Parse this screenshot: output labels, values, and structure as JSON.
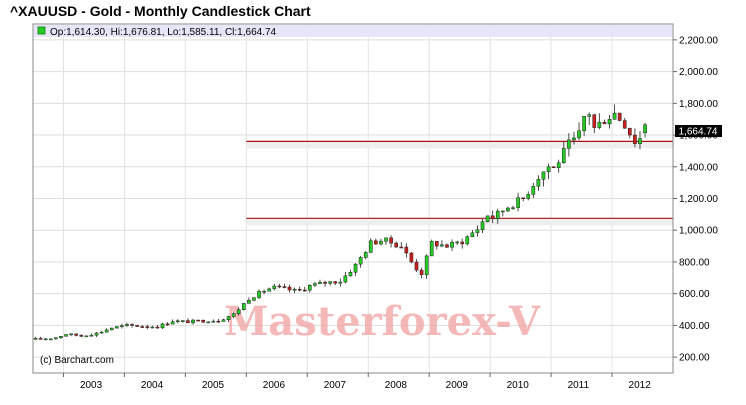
{
  "header": {
    "title": "^XAUUSD - Gold - Monthly Candlestick Chart"
  },
  "legend": {
    "text": "Op:1,614.30, Hi:1,676.81, Lo:1,585.11, Cl:1,664.74"
  },
  "credit": "(c) Barchart.com",
  "watermark": "Masterforex-V",
  "last_price_label": "1,664.74",
  "colors": {
    "up": "#22cc22",
    "down": "#cc1f1f",
    "wick": "#222222",
    "hline": "#aa1111",
    "legend_bar": "#e6e6f8",
    "watermark": "#f2a0a0",
    "price_tag": "#000000"
  },
  "chart_data": {
    "type": "candlestick",
    "title": "^XAUUSD - Gold - Monthly Candlestick Chart",
    "x_ticks": [
      "2003",
      "2004",
      "2005",
      "2006",
      "2007",
      "2008",
      "2009",
      "2010",
      "2011",
      "2012"
    ],
    "y_ticks": [
      "200.00",
      "400.00",
      "600.00",
      "800.00",
      "1,000.00",
      "1,200.00",
      "1,400.00",
      "1,600.00",
      "1,800.00",
      "2,000.00",
      "2,200.00"
    ],
    "ylim": [
      100,
      2300
    ],
    "x_range": [
      "2002-06",
      "2012-12"
    ],
    "grid": true,
    "horizontal_lines": [
      1560,
      1075
    ],
    "last_candle": {
      "open": 1614.3,
      "high": 1676.81,
      "low": 1585.11,
      "close": 1664.74
    },
    "monthly_close_path": [
      [
        2002.5,
        313
      ],
      [
        2002.8,
        320
      ],
      [
        2003.0,
        345
      ],
      [
        2003.25,
        335
      ],
      [
        2003.5,
        350
      ],
      [
        2003.75,
        385
      ],
      [
        2004.0,
        400
      ],
      [
        2004.25,
        395
      ],
      [
        2004.5,
        392
      ],
      [
        2004.75,
        428
      ],
      [
        2005.0,
        423
      ],
      [
        2005.25,
        430
      ],
      [
        2005.5,
        432
      ],
      [
        2005.75,
        470
      ],
      [
        2006.0,
        570
      ],
      [
        2006.25,
        620
      ],
      [
        2006.4,
        640
      ],
      [
        2006.6,
        630
      ],
      [
        2006.8,
        615
      ],
      [
        2007.0,
        650
      ],
      [
        2007.25,
        670
      ],
      [
        2007.5,
        680
      ],
      [
        2007.75,
        780
      ],
      [
        2008.0,
        920
      ],
      [
        2008.2,
        940
      ],
      [
        2008.5,
        900
      ],
      [
        2008.7,
        780
      ],
      [
        2008.83,
        725
      ],
      [
        2009.0,
        920
      ],
      [
        2009.25,
        900
      ],
      [
        2009.5,
        930
      ],
      [
        2009.75,
        1010
      ],
      [
        2009.92,
        1100
      ],
      [
        2010.0,
        1080
      ],
      [
        2010.25,
        1150
      ],
      [
        2010.5,
        1200
      ],
      [
        2010.75,
        1340
      ],
      [
        2010.92,
        1405
      ],
      [
        2011.0,
        1390
      ],
      [
        2011.25,
        1540
      ],
      [
        2011.4,
        1580
      ],
      [
        2011.55,
        1780
      ],
      [
        2011.67,
        1640
      ],
      [
        2011.83,
        1700
      ],
      [
        2012.0,
        1740
      ],
      [
        2012.17,
        1670
      ],
      [
        2012.33,
        1560
      ],
      [
        2012.5,
        1600
      ],
      [
        2012.58,
        1665
      ]
    ]
  }
}
